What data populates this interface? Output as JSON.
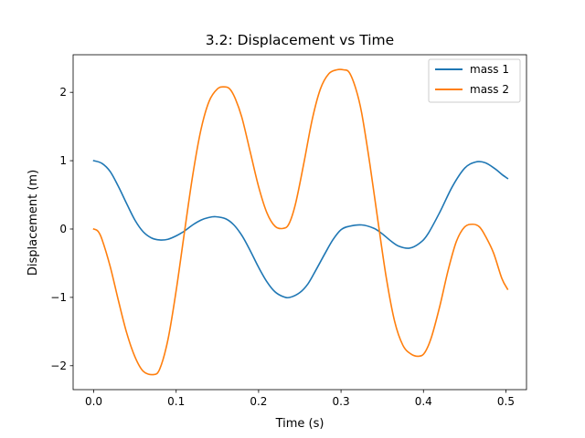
{
  "chart_data": {
    "type": "line",
    "title": "3.2: Displacement vs Time",
    "xlabel": "Time (s)",
    "ylabel": "Displacement (m)",
    "xlim": [
      -0.025,
      0.525
    ],
    "ylim": [
      -2.35,
      2.55
    ],
    "xticks": [
      0.0,
      0.1,
      0.2,
      0.3,
      0.4,
      0.5
    ],
    "xtick_labels": [
      "0.0",
      "0.1",
      "0.2",
      "0.3",
      "0.4",
      "0.5"
    ],
    "yticks": [
      -2,
      -1,
      0,
      1,
      2
    ],
    "ytick_labels": [
      "−2",
      "−1",
      "0",
      "1",
      "2"
    ],
    "grid": false,
    "legend_position": "top-right",
    "series": [
      {
        "name": "mass 1",
        "color": "#1f77b4",
        "x": [
          0.0,
          0.01,
          0.02,
          0.03,
          0.04,
          0.05,
          0.06,
          0.07,
          0.08,
          0.09,
          0.1,
          0.11,
          0.12,
          0.13,
          0.14,
          0.148,
          0.16,
          0.17,
          0.18,
          0.19,
          0.2,
          0.21,
          0.22,
          0.23,
          0.238,
          0.25,
          0.26,
          0.27,
          0.28,
          0.29,
          0.3,
          0.31,
          0.325,
          0.34,
          0.35,
          0.36,
          0.37,
          0.383,
          0.395,
          0.405,
          0.42,
          0.435,
          0.45,
          0.463,
          0.475,
          0.487,
          0.495,
          0.502
        ],
        "y": [
          1.0,
          0.96,
          0.84,
          0.62,
          0.37,
          0.13,
          -0.04,
          -0.13,
          -0.16,
          -0.15,
          -0.1,
          -0.03,
          0.06,
          0.13,
          0.17,
          0.18,
          0.15,
          0.06,
          -0.1,
          -0.32,
          -0.56,
          -0.77,
          -0.92,
          -0.99,
          -1.0,
          -0.93,
          -0.8,
          -0.59,
          -0.37,
          -0.16,
          -0.01,
          0.04,
          0.06,
          0.01,
          -0.07,
          -0.17,
          -0.25,
          -0.28,
          -0.21,
          -0.08,
          0.25,
          0.62,
          0.89,
          0.98,
          0.97,
          0.88,
          0.8,
          0.74
        ]
      },
      {
        "name": "mass 2",
        "color": "#ff7f0e",
        "x": [
          0.0,
          0.005,
          0.01,
          0.02,
          0.03,
          0.04,
          0.05,
          0.06,
          0.072,
          0.08,
          0.09,
          0.1,
          0.11,
          0.12,
          0.13,
          0.14,
          0.15,
          0.158,
          0.165,
          0.172,
          0.18,
          0.19,
          0.2,
          0.21,
          0.22,
          0.23,
          0.237,
          0.245,
          0.255,
          0.265,
          0.275,
          0.285,
          0.295,
          0.303,
          0.31,
          0.318,
          0.325,
          0.335,
          0.345,
          0.355,
          0.365,
          0.375,
          0.385,
          0.395,
          0.402,
          0.41,
          0.42,
          0.43,
          0.44,
          0.45,
          0.46,
          0.468,
          0.475,
          0.485,
          0.495,
          0.502
        ],
        "y": [
          0.0,
          -0.03,
          -0.15,
          -0.55,
          -1.05,
          -1.52,
          -1.87,
          -2.08,
          -2.13,
          -2.05,
          -1.62,
          -0.9,
          -0.05,
          0.78,
          1.45,
          1.87,
          2.05,
          2.08,
          2.05,
          1.9,
          1.62,
          1.12,
          0.62,
          0.24,
          0.04,
          0.01,
          0.08,
          0.38,
          0.97,
          1.6,
          2.05,
          2.27,
          2.33,
          2.33,
          2.29,
          2.05,
          1.7,
          0.95,
          0.1,
          -0.72,
          -1.35,
          -1.7,
          -1.83,
          -1.86,
          -1.8,
          -1.57,
          -1.12,
          -0.6,
          -0.18,
          0.03,
          0.07,
          0.03,
          -0.1,
          -0.35,
          -0.72,
          -0.88
        ]
      }
    ]
  }
}
